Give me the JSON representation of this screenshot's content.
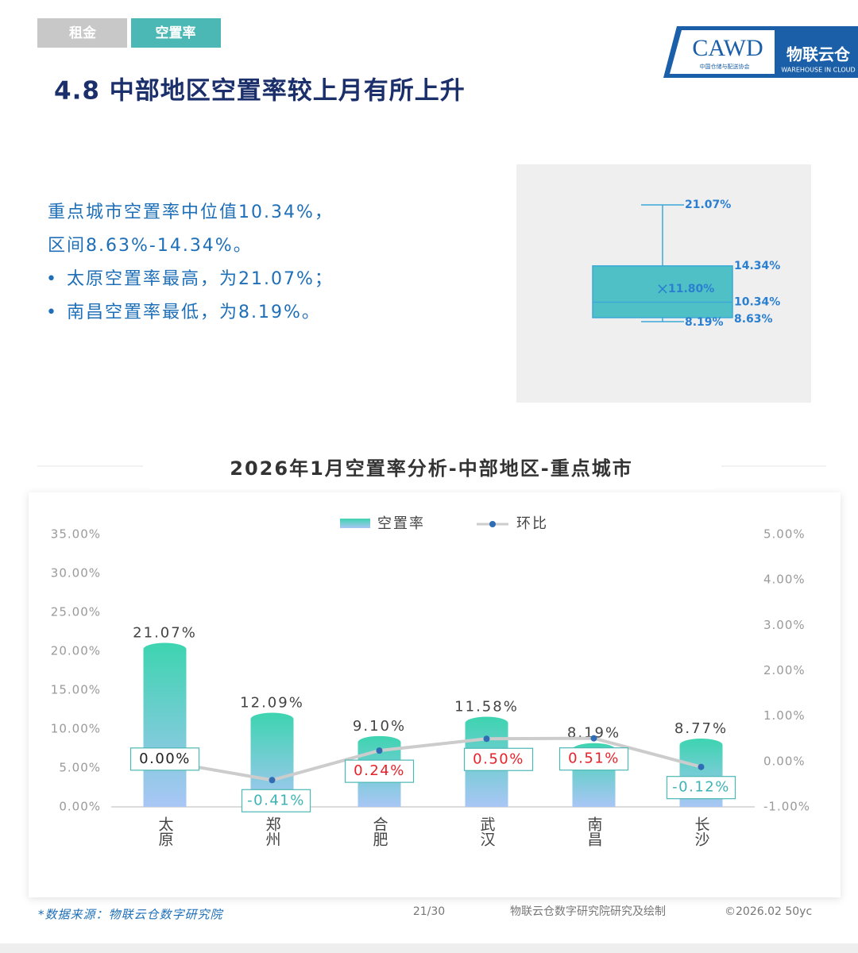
{
  "header": {
    "tabs": [
      "租金",
      "空置率"
    ],
    "title": "4.8 中部地区空置率较上月有所上升",
    "logo": {
      "cawd": "CAWD",
      "cawd_sub": "中国仓储与配送协会",
      "brand": "物联云仓",
      "brand_sub": "WAREHOUSE IN CLOUD"
    }
  },
  "summary": {
    "lines": [
      "重点城市空置率中位值10.34%，",
      "区间8.63%-14.34%。"
    ],
    "bullets": [
      "太原空置率最高，为21.07%；",
      "南昌空置率最低，为8.19%。"
    ]
  },
  "chart_data": [
    {
      "type": "box",
      "color": "#4fc0c6",
      "whisker_color": "#3aa9d8",
      "min": 8.19,
      "q1": 8.63,
      "median": 10.34,
      "q3": 14.34,
      "max": 21.07,
      "mean": 11.8,
      "value_labels": {
        "min": "8.19%",
        "q1": "8.63%",
        "median": "10.34%",
        "q3": "14.34%",
        "max": "21.07%",
        "mean": "11.80%"
      }
    },
    {
      "type": "bar",
      "title": "2026年1月空置率分析-中部地区-重点城市",
      "categories": [
        "太原",
        "郑州",
        "合肥",
        "武汉",
        "南昌",
        "长沙"
      ],
      "series": [
        {
          "name": "空置率",
          "type": "bar",
          "color": "#3dd4b0",
          "values": [
            21.07,
            12.09,
            9.1,
            11.58,
            8.19,
            8.77
          ],
          "value_labels": [
            "21.07%",
            "12.09%",
            "9.10%",
            "11.58%",
            "8.19%",
            "8.77%"
          ]
        },
        {
          "name": "环比",
          "type": "line",
          "axis": "y2",
          "color": "#cccccc",
          "marker_color": "#2f6db5",
          "values": [
            0.0,
            -0.41,
            0.24,
            0.5,
            0.51,
            -0.12
          ],
          "value_labels": [
            "0.00%",
            "-0.41%",
            "0.24%",
            "0.50%",
            "0.51%",
            "-0.12%"
          ]
        }
      ],
      "ylim": [
        0,
        35
      ],
      "yticks": [
        {
          "value": 0,
          "label": "0.00%"
        },
        {
          "value": 5,
          "label": "5.00%"
        },
        {
          "value": 10,
          "label": "10.00%"
        },
        {
          "value": 15,
          "label": "15.00%"
        },
        {
          "value": 20,
          "label": "20.00%"
        },
        {
          "value": 25,
          "label": "25.00%"
        },
        {
          "value": 30,
          "label": "30.00%"
        },
        {
          "value": 35,
          "label": "35.00%"
        }
      ],
      "y2lim": [
        -1,
        5
      ],
      "y2ticks": [
        {
          "value": -1,
          "label": "-1.00%"
        },
        {
          "value": 0,
          "label": "0.00%"
        },
        {
          "value": 1,
          "label": "1.00%"
        },
        {
          "value": 2,
          "label": "2.00%"
        },
        {
          "value": 3,
          "label": "3.00%"
        },
        {
          "value": 4,
          "label": "4.00%"
        },
        {
          "value": 5,
          "label": "5.00%"
        }
      ],
      "legend": "top"
    }
  ],
  "footer": {
    "source": "*数据来源：物联云仓数字研究院",
    "page": "21/30",
    "credit": "物联云仓数字研究院研究及绘制",
    "copyright": "©2026.02 50yc"
  }
}
